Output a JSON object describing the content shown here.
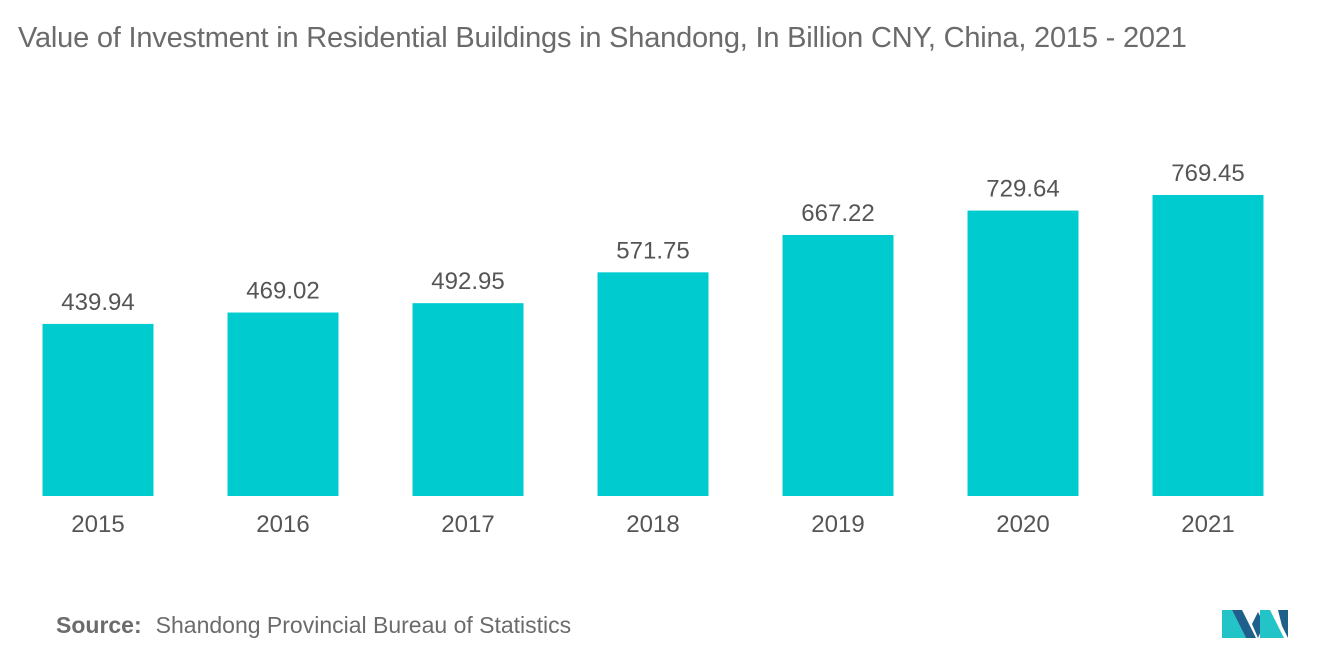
{
  "title": "Value of Investment in Residential Buildings in Shandong, In Billion CNY, China, 2015 - 2021",
  "source": {
    "label": "Source:",
    "text": "Shandong Provincial Bureau of Statistics"
  },
  "logo_icon": "mordor-intelligence-logo",
  "colors": {
    "bar": "#00cccf",
    "text": "#555555",
    "title": "#6b6b6b",
    "logo_dark": "#1f5f8b",
    "logo_light": "#23c4c8"
  },
  "chart_data": {
    "type": "bar",
    "categories": [
      "2015",
      "2016",
      "2017",
      "2018",
      "2019",
      "2020",
      "2021"
    ],
    "values": [
      439.94,
      469.02,
      492.95,
      571.75,
      667.22,
      729.64,
      769.45
    ],
    "data_labels": [
      "439.94",
      "469.02",
      "492.95",
      "571.75",
      "667.22",
      "729.64",
      "769.45"
    ],
    "title": "Value of Investment in Residential Buildings in Shandong, In Billion CNY, China, 2015 - 2021",
    "xlabel": "",
    "ylabel": "",
    "ylim": [
      0,
      769.45
    ],
    "grid": false,
    "legend": "none"
  }
}
